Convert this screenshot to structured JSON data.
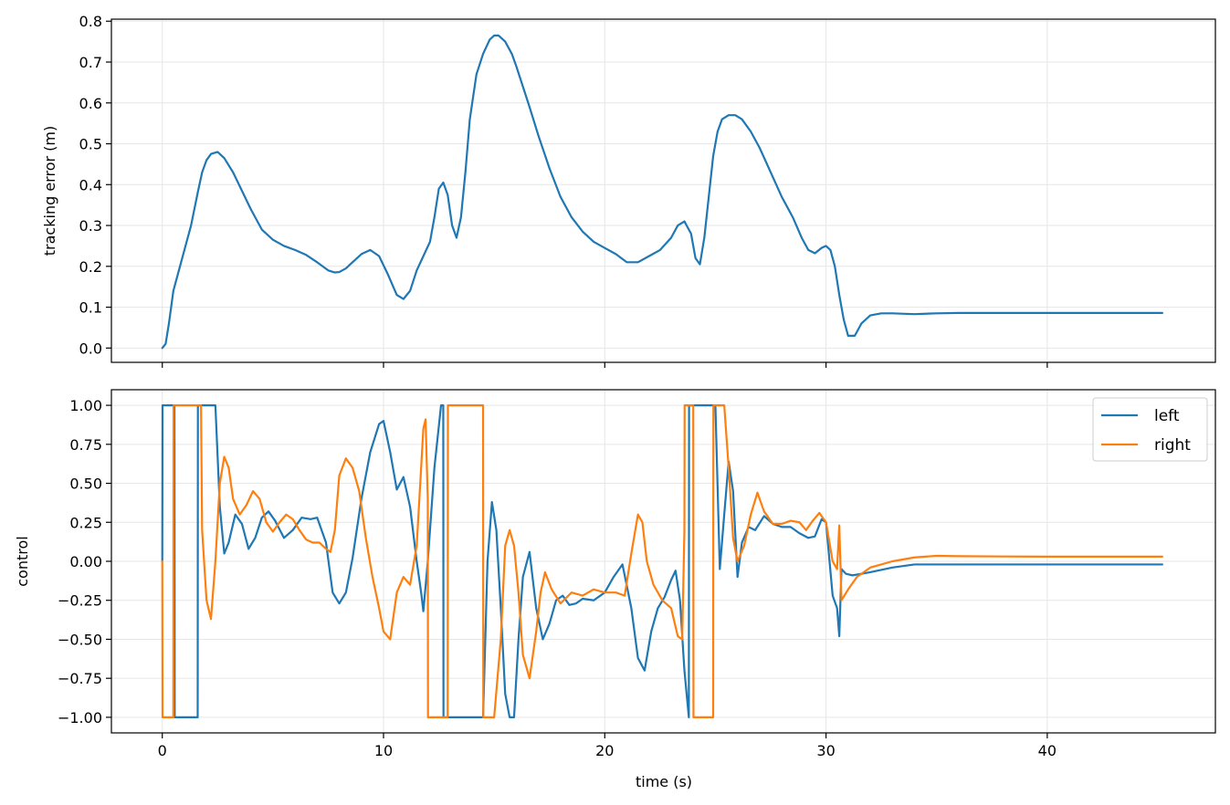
{
  "chart_data": [
    {
      "type": "line",
      "xlabel": "",
      "ylabel": "tracking error (m)",
      "xlim": [
        -2.3,
        47.6
      ],
      "ylim": [
        -0.035,
        0.805
      ],
      "xticks": [
        0,
        10,
        20,
        30,
        40
      ],
      "show_xtick_labels": false,
      "yticks": [
        0.0,
        0.1,
        0.2,
        0.3,
        0.4,
        0.5,
        0.6,
        0.7,
        0.8
      ],
      "ytick_labels": [
        "0.0",
        "0.1",
        "0.2",
        "0.3",
        "0.4",
        "0.5",
        "0.6",
        "0.7",
        "0.8"
      ],
      "grid": true,
      "series": [
        {
          "color": "#1f77b4",
          "x": [
            0,
            0.15,
            0.3,
            0.5,
            0.8,
            1.0,
            1.3,
            1.6,
            1.8,
            2.0,
            2.2,
            2.5,
            2.8,
            3.2,
            3.6,
            4.0,
            4.5,
            5.0,
            5.5,
            6.0,
            6.5,
            7.0,
            7.5,
            7.8,
            8.0,
            8.3,
            8.6,
            9.0,
            9.4,
            9.8,
            10.2,
            10.6,
            10.9,
            11.2,
            11.5,
            11.8,
            12.1,
            12.3,
            12.5,
            12.7,
            12.9,
            13.1,
            13.3,
            13.5,
            13.7,
            13.9,
            14.2,
            14.5,
            14.8,
            15.0,
            15.2,
            15.5,
            15.8,
            16.0,
            16.3,
            16.6,
            17.0,
            17.5,
            18.0,
            18.5,
            19.0,
            19.5,
            20.0,
            20.5,
            21.0,
            21.5,
            22.0,
            22.5,
            23.0,
            23.3,
            23.6,
            23.9,
            24.1,
            24.3,
            24.5,
            24.7,
            24.9,
            25.1,
            25.3,
            25.6,
            25.9,
            26.2,
            26.6,
            27.0,
            27.5,
            28.0,
            28.5,
            28.9,
            29.2,
            29.5,
            29.8,
            30.0,
            30.2,
            30.4,
            30.6,
            30.8,
            31.0,
            31.3,
            31.6,
            32.0,
            32.5,
            33.0,
            34.0,
            35.0,
            36.0,
            38.0,
            40.0,
            42.0,
            44.0,
            45.2
          ],
          "y": [
            0.0,
            0.01,
            0.06,
            0.14,
            0.2,
            0.24,
            0.3,
            0.38,
            0.43,
            0.46,
            0.475,
            0.48,
            0.465,
            0.43,
            0.385,
            0.34,
            0.29,
            0.265,
            0.25,
            0.24,
            0.228,
            0.21,
            0.19,
            0.185,
            0.186,
            0.195,
            0.21,
            0.23,
            0.24,
            0.225,
            0.18,
            0.13,
            0.12,
            0.14,
            0.19,
            0.225,
            0.26,
            0.32,
            0.39,
            0.405,
            0.375,
            0.3,
            0.27,
            0.32,
            0.43,
            0.56,
            0.67,
            0.72,
            0.755,
            0.765,
            0.765,
            0.75,
            0.72,
            0.69,
            0.64,
            0.59,
            0.52,
            0.44,
            0.37,
            0.32,
            0.285,
            0.26,
            0.245,
            0.23,
            0.21,
            0.21,
            0.225,
            0.24,
            0.27,
            0.3,
            0.31,
            0.28,
            0.22,
            0.205,
            0.27,
            0.37,
            0.47,
            0.53,
            0.56,
            0.57,
            0.57,
            0.56,
            0.53,
            0.49,
            0.43,
            0.37,
            0.32,
            0.27,
            0.24,
            0.232,
            0.245,
            0.25,
            0.24,
            0.2,
            0.13,
            0.07,
            0.03,
            0.03,
            0.06,
            0.08,
            0.085,
            0.085,
            0.083,
            0.085,
            0.086,
            0.086,
            0.086,
            0.086,
            0.086,
            0.086
          ]
        }
      ]
    },
    {
      "type": "line",
      "xlabel": "time (s)",
      "ylabel": "control",
      "xlim": [
        -2.3,
        47.6
      ],
      "ylim": [
        -1.1,
        1.1
      ],
      "xticks": [
        0,
        10,
        20,
        30,
        40
      ],
      "xtick_labels": [
        "0",
        "10",
        "20",
        "30",
        "40"
      ],
      "yticks": [
        -1.0,
        -0.75,
        -0.5,
        -0.25,
        0.0,
        0.25,
        0.5,
        0.75,
        1.0
      ],
      "ytick_labels": [
        "−1.00",
        "−0.75",
        "−0.50",
        "−0.25",
        "0.00",
        "0.25",
        "0.50",
        "0.75",
        "1.00"
      ],
      "grid": true,
      "legend": "top-right",
      "series": [
        {
          "name": "left",
          "color": "#1f77b4",
          "x": [
            0,
            0.01,
            0.55,
            0.56,
            1.6,
            1.61,
            2.4,
            2.6,
            2.8,
            3.0,
            3.3,
            3.6,
            3.9,
            4.2,
            4.5,
            4.8,
            5.1,
            5.5,
            5.9,
            6.3,
            6.7,
            7.0,
            7.4,
            7.7,
            8.0,
            8.3,
            8.6,
            9.0,
            9.4,
            9.8,
            10.0,
            10.3,
            10.6,
            10.9,
            11.2,
            11.5,
            11.7,
            11.8,
            12.0,
            12.3,
            12.6,
            12.7,
            12.71,
            14.5,
            14.7,
            14.9,
            15.1,
            15.3,
            15.5,
            15.7,
            15.9,
            16.1,
            16.3,
            16.6,
            16.9,
            17.2,
            17.5,
            17.8,
            18.1,
            18.4,
            18.7,
            19.0,
            19.5,
            20.0,
            20.4,
            20.8,
            21.2,
            21.5,
            21.8,
            22.1,
            22.4,
            22.7,
            23.0,
            23.2,
            23.4,
            23.6,
            23.8,
            23.81,
            25.0,
            25.2,
            25.4,
            25.6,
            25.8,
            26.0,
            26.2,
            26.5,
            26.8,
            27.2,
            27.6,
            28.0,
            28.4,
            28.8,
            29.2,
            29.5,
            29.8,
            30.0,
            30.3,
            30.5,
            30.6,
            30.7,
            30.9,
            31.2,
            31.6,
            32.0,
            33.0,
            34.0,
            36.0,
            40.0,
            45.2
          ],
          "y": [
            0,
            1,
            1,
            -1,
            -1,
            1,
            1,
            0.35,
            0.05,
            0.12,
            0.3,
            0.24,
            0.08,
            0.15,
            0.28,
            0.32,
            0.26,
            0.15,
            0.2,
            0.28,
            0.27,
            0.28,
            0.12,
            -0.2,
            -0.27,
            -0.2,
            0.02,
            0.4,
            0.7,
            0.88,
            0.9,
            0.7,
            0.46,
            0.54,
            0.35,
            0.0,
            -0.2,
            -0.32,
            0.0,
            0.6,
            1,
            1,
            -1,
            -1,
            0.0,
            0.38,
            0.2,
            -0.3,
            -0.85,
            -1,
            -1,
            -0.5,
            -0.1,
            0.06,
            -0.3,
            -0.5,
            -0.4,
            -0.25,
            -0.22,
            -0.28,
            -0.27,
            -0.24,
            -0.25,
            -0.2,
            -0.1,
            -0.02,
            -0.3,
            -0.62,
            -0.7,
            -0.45,
            -0.3,
            -0.23,
            -0.12,
            -0.06,
            -0.25,
            -0.7,
            -1,
            1,
            1,
            -0.05,
            0.3,
            0.64,
            0.45,
            -0.1,
            0.12,
            0.22,
            0.2,
            0.29,
            0.24,
            0.22,
            0.22,
            0.18,
            0.15,
            0.16,
            0.27,
            0.25,
            -0.22,
            -0.3,
            -0.48,
            -0.05,
            -0.08,
            -0.09,
            -0.08,
            -0.07,
            -0.04,
            -0.02,
            -0.02,
            -0.02,
            -0.02
          ]
        },
        {
          "name": "right",
          "color": "#ff7f0e",
          "x": [
            0,
            0.01,
            0.5,
            0.51,
            1.75,
            1.8,
            2.0,
            2.2,
            2.4,
            2.6,
            2.8,
            3.0,
            3.2,
            3.5,
            3.8,
            4.1,
            4.4,
            4.7,
            5.0,
            5.3,
            5.6,
            5.9,
            6.2,
            6.5,
            6.8,
            7.1,
            7.4,
            7.6,
            7.8,
            8.0,
            8.3,
            8.6,
            8.9,
            9.2,
            9.5,
            9.8,
            10.0,
            10.3,
            10.6,
            10.9,
            11.2,
            11.5,
            11.8,
            11.9,
            12.0,
            12.01,
            12.9,
            12.91,
            13.1,
            13.11,
            14.5,
            14.51,
            15.0,
            15.3,
            15.5,
            15.7,
            15.9,
            16.1,
            16.3,
            16.6,
            16.9,
            17.1,
            17.3,
            17.6,
            18.0,
            18.5,
            19.0,
            19.5,
            20.0,
            20.5,
            20.9,
            21.2,
            21.5,
            21.7,
            21.9,
            22.2,
            22.6,
            23.0,
            23.3,
            23.5,
            23.6,
            23.61,
            24.0,
            24.01,
            24.9,
            24.91,
            25.4,
            25.6,
            25.8,
            26.0,
            26.3,
            26.6,
            26.9,
            27.2,
            27.6,
            28.0,
            28.4,
            28.8,
            29.1,
            29.4,
            29.7,
            30.0,
            30.3,
            30.5,
            30.6,
            30.7,
            31.0,
            31.4,
            32.0,
            33.0,
            34.0,
            35.0,
            36.0,
            38.0,
            40.0,
            45.2
          ],
          "y": [
            0,
            -1,
            -1,
            1,
            1,
            0.2,
            -0.25,
            -0.37,
            0.0,
            0.5,
            0.67,
            0.6,
            0.4,
            0.3,
            0.36,
            0.45,
            0.4,
            0.25,
            0.19,
            0.25,
            0.3,
            0.27,
            0.2,
            0.14,
            0.12,
            0.12,
            0.08,
            0.06,
            0.2,
            0.55,
            0.66,
            0.6,
            0.45,
            0.15,
            -0.1,
            -0.3,
            -0.45,
            -0.5,
            -0.2,
            -0.1,
            -0.15,
            0.1,
            0.85,
            0.91,
            0.4,
            -1,
            -1,
            1,
            1,
            1,
            1,
            -1,
            -1,
            -0.5,
            0.1,
            0.2,
            0.1,
            -0.2,
            -0.6,
            -0.75,
            -0.45,
            -0.2,
            -0.07,
            -0.18,
            -0.27,
            -0.2,
            -0.22,
            -0.18,
            -0.2,
            -0.2,
            -0.22,
            0.05,
            0.3,
            0.25,
            0.0,
            -0.15,
            -0.25,
            -0.3,
            -0.48,
            -0.5,
            0.2,
            1,
            1,
            -1,
            -1,
            1,
            1,
            0.6,
            0.15,
            0.0,
            0.1,
            0.3,
            0.44,
            0.32,
            0.24,
            0.24,
            0.26,
            0.25,
            0.2,
            0.26,
            0.31,
            0.25,
            0.0,
            -0.05,
            0.23,
            -0.25,
            -0.18,
            -0.1,
            -0.04,
            0.0,
            0.025,
            0.035,
            0.033,
            0.031,
            0.03,
            0.03
          ]
        }
      ]
    }
  ]
}
